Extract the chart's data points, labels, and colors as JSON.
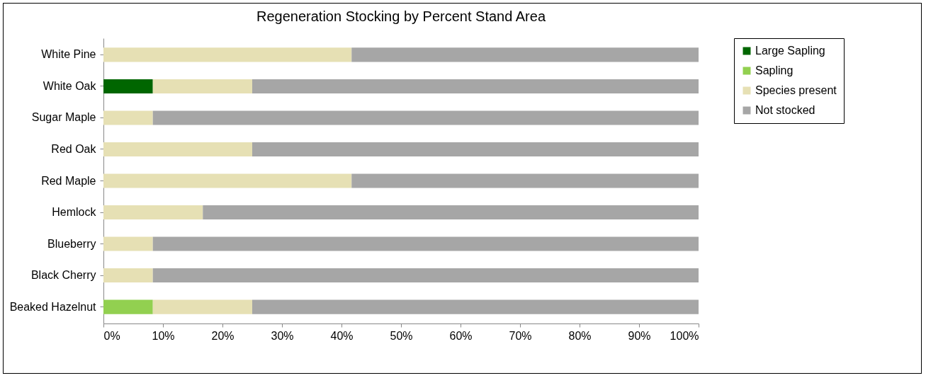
{
  "chart_data": {
    "type": "bar",
    "orientation": "horizontal",
    "stacked": true,
    "title": "Regeneration Stocking by Percent Stand Area",
    "categories": [
      "White Pine",
      "White Oak",
      "Sugar Maple",
      "Red Oak",
      "Red Maple",
      "Hemlock",
      "Blueberry",
      "Black Cherry",
      "Beaked Hazelnut"
    ],
    "series": [
      {
        "name": "Large Sapling",
        "color": "#006600",
        "values": [
          0,
          8.3,
          0,
          0,
          0,
          0,
          0,
          0,
          0
        ]
      },
      {
        "name": "Sapling",
        "color": "#92d050",
        "values": [
          0,
          0,
          0,
          0,
          0,
          0,
          0,
          0,
          8.3
        ]
      },
      {
        "name": "Species present",
        "color": "#e6e0b4",
        "values": [
          41.7,
          16.7,
          8.3,
          25,
          41.7,
          16.7,
          8.3,
          8.3,
          16.7
        ]
      },
      {
        "name": "Not stocked",
        "color": "#a6a6a6",
        "values": [
          58.3,
          75,
          91.7,
          75,
          58.3,
          83.3,
          91.7,
          91.7,
          75
        ]
      }
    ],
    "xlim": [
      0,
      100
    ],
    "xticks": [
      {
        "value": 0,
        "label": "0%"
      },
      {
        "value": 10,
        "label": "10%"
      },
      {
        "value": 20,
        "label": "20%"
      },
      {
        "value": 30,
        "label": "30%"
      },
      {
        "value": 40,
        "label": "40%"
      },
      {
        "value": 50,
        "label": "50%"
      },
      {
        "value": 60,
        "label": "60%"
      },
      {
        "value": 70,
        "label": "70%"
      },
      {
        "value": 80,
        "label": "80%"
      },
      {
        "value": 90,
        "label": "90%"
      },
      {
        "value": 100,
        "label": "100%"
      }
    ],
    "grid": false,
    "legend": "right"
  }
}
